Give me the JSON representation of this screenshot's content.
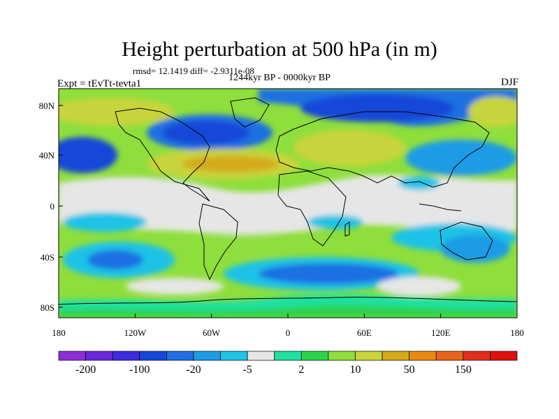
{
  "title": "Height perturbation at 500 hPa (in m)",
  "stats": "rmsd= 12.1419 diff= -2.9311e-08",
  "period": "1244kyr BP - 0000kyr BP",
  "experiment": "Expt = tEvTt-tevta1",
  "season": "DJF",
  "axes": {
    "y_ticks": [
      "80N",
      "40N",
      "0",
      "40S",
      "80S"
    ],
    "x_ticks": [
      "180",
      "120W",
      "60W",
      "0",
      "60E",
      "120E",
      "180"
    ]
  },
  "colorbar": {
    "labels": [
      "-200",
      "-100",
      "-20",
      "-5",
      "2",
      "10",
      "50",
      "150"
    ],
    "colors": [
      "#8e2ed8",
      "#6a27de",
      "#3c2ce0",
      "#1746d8",
      "#1e6fe2",
      "#1f9be6",
      "#1fc3e6",
      "#e6e6e6",
      "#1fe0a0",
      "#2ed24a",
      "#8ede3c",
      "#c8d43a",
      "#d4aa1a",
      "#e88a12",
      "#e8641a",
      "#e0301c",
      "#e01010"
    ]
  },
  "field_colors": {
    "land_outline": "#000000",
    "neutral": "#e6e6e6"
  }
}
